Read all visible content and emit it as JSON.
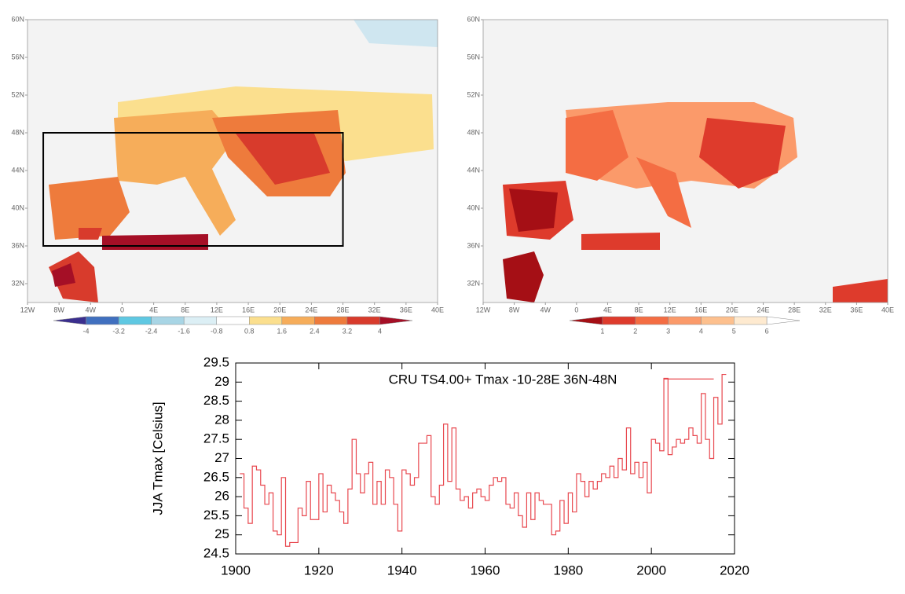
{
  "maps": [
    {
      "xlim": [
        -12,
        40
      ],
      "ylim": [
        30,
        60
      ],
      "xticks": [
        {
          "value": -12,
          "label": "12W"
        },
        {
          "value": -8,
          "label": "8W"
        },
        {
          "value": -4,
          "label": "4W"
        },
        0,
        {
          "value": 4,
          "label": "4E"
        },
        {
          "value": 8,
          "label": "8E"
        },
        {
          "value": 12,
          "label": "12E"
        },
        {
          "value": 16,
          "label": "16E"
        },
        {
          "value": 20,
          "label": "20E"
        },
        {
          "value": 24,
          "label": "24E"
        },
        {
          "value": 28,
          "label": "28E"
        },
        {
          "value": 32,
          "label": "32E"
        },
        {
          "value": 36,
          "label": "36E"
        },
        {
          "value": 40,
          "label": "40E"
        }
      ],
      "yticks": [
        {
          "value": 32,
          "label": "32N"
        },
        {
          "value": 36,
          "label": "36N"
        },
        {
          "value": 40,
          "label": "40N"
        },
        {
          "value": 44,
          "label": "44N"
        },
        {
          "value": 48,
          "label": "48N"
        },
        {
          "value": 52,
          "label": "52N"
        },
        {
          "value": 56,
          "label": "56N"
        },
        {
          "value": 60,
          "label": "60N"
        }
      ],
      "box": {
        "lon": [
          -10,
          28
        ],
        "lat": [
          36,
          48
        ]
      },
      "colorbar": {
        "colors": [
          "#3b2f8e",
          "#4070bf",
          "#5fc8e2",
          "#a8d5e5",
          "#dceff5",
          "#ffffff",
          "#fbdf8e",
          "#f6ad5a",
          "#ee7b3c",
          "#d83b2c",
          "#a50f26"
        ],
        "labels": [
          -4,
          -3.2,
          -2.4,
          -1.6,
          -0.8,
          0.8,
          1.6,
          2.4,
          3.2,
          4
        ]
      }
    },
    {
      "xlim": [
        -12,
        40
      ],
      "ylim": [
        30,
        60
      ],
      "xticks": [
        {
          "value": -12,
          "label": "12W"
        },
        {
          "value": -8,
          "label": "8W"
        },
        {
          "value": -4,
          "label": "4W"
        },
        0,
        {
          "value": 4,
          "label": "4E"
        },
        {
          "value": 8,
          "label": "8E"
        },
        {
          "value": 12,
          "label": "12E"
        },
        {
          "value": 16,
          "label": "16E"
        },
        {
          "value": 20,
          "label": "20E"
        },
        {
          "value": 24,
          "label": "24E"
        },
        {
          "value": 28,
          "label": "28E"
        },
        {
          "value": 32,
          "label": "32E"
        },
        {
          "value": 36,
          "label": "36E"
        },
        {
          "value": 40,
          "label": "40E"
        }
      ],
      "yticks": [
        {
          "value": 32,
          "label": "32N"
        },
        {
          "value": 36,
          "label": "36N"
        },
        {
          "value": 40,
          "label": "40N"
        },
        {
          "value": 44,
          "label": "44N"
        },
        {
          "value": 48,
          "label": "48N"
        },
        {
          "value": 52,
          "label": "52N"
        },
        {
          "value": 56,
          "label": "56N"
        },
        {
          "value": 60,
          "label": "60N"
        }
      ],
      "colorbar": {
        "colors": [
          "#a50f15",
          "#de3b2c",
          "#f46d43",
          "#fb9a6a",
          "#fdc08e",
          "#feead0",
          "#ffffff"
        ],
        "labels": [
          1,
          2,
          3,
          4,
          5,
          6
        ]
      }
    }
  ],
  "chart_data": {
    "type": "line",
    "step": true,
    "title": "CRU TS4.00+ Tmax -10-28E 36N-48N",
    "y_label": "JJA Tmax [Celsius]",
    "color": "#e8484f",
    "x": [
      1901,
      1902,
      1903,
      1904,
      1905,
      1906,
      1907,
      1908,
      1909,
      1910,
      1911,
      1912,
      1913,
      1914,
      1915,
      1916,
      1917,
      1918,
      1919,
      1920,
      1921,
      1922,
      1923,
      1924,
      1925,
      1926,
      1927,
      1928,
      1929,
      1930,
      1931,
      1932,
      1933,
      1934,
      1935,
      1936,
      1937,
      1938,
      1939,
      1940,
      1941,
      1942,
      1943,
      1944,
      1945,
      1946,
      1947,
      1948,
      1949,
      1950,
      1951,
      1952,
      1953,
      1954,
      1955,
      1956,
      1957,
      1958,
      1959,
      1960,
      1961,
      1962,
      1963,
      1964,
      1965,
      1966,
      1967,
      1968,
      1969,
      1970,
      1971,
      1972,
      1973,
      1974,
      1975,
      1976,
      1977,
      1978,
      1979,
      1980,
      1981,
      1982,
      1983,
      1984,
      1985,
      1986,
      1987,
      1988,
      1989,
      1990,
      1991,
      1992,
      1993,
      1994,
      1995,
      1996,
      1997,
      1998,
      1999,
      2000,
      2001,
      2002,
      2003,
      2004,
      2005,
      2006,
      2007,
      2008,
      2009,
      2010,
      2011,
      2012,
      2013,
      2014,
      2015,
      2016,
      2017
    ],
    "values": [
      26.6,
      25.7,
      25.3,
      26.8,
      26.7,
      26.3,
      25.8,
      26.1,
      25.1,
      25.0,
      26.5,
      24.7,
      24.8,
      24.8,
      25.7,
      25.5,
      26.4,
      25.4,
      25.4,
      26.6,
      25.6,
      26.3,
      26.1,
      25.9,
      25.6,
      25.3,
      26.2,
      27.5,
      26.6,
      26.1,
      26.6,
      26.9,
      25.8,
      26.4,
      25.8,
      26.7,
      26.5,
      25.8,
      25.1,
      26.7,
      26.6,
      26.3,
      26.5,
      27.4,
      27.4,
      27.6,
      26.0,
      25.8,
      26.3,
      27.9,
      26.4,
      27.8,
      26.2,
      25.9,
      26.0,
      25.7,
      26.1,
      26.2,
      26.0,
      25.9,
      26.3,
      26.5,
      26.4,
      26.5,
      25.8,
      25.7,
      26.1,
      25.5,
      25.2,
      26.1,
      25.4,
      26.1,
      25.9,
      25.8,
      25.8,
      25.0,
      25.1,
      25.9,
      25.3,
      26.1,
      25.6,
      26.6,
      26.4,
      26.0,
      26.4,
      26.2,
      26.4,
      26.6,
      26.5,
      26.8,
      26.5,
      27.0,
      26.7,
      27.8,
      26.6,
      26.9,
      26.5,
      26.9,
      26.1,
      27.5,
      27.4,
      27.2,
      29.1,
      27.1,
      27.3,
      27.5,
      27.4,
      27.5,
      27.8,
      27.6,
      27.4,
      28.7,
      27.5,
      27.0,
      28.6,
      27.9,
      29.2
    ],
    "reference_line": {
      "x": [
        2003,
        2015
      ],
      "y": 29.08
    },
    "xlim": [
      1900,
      2020
    ],
    "xticks": [
      1900,
      1920,
      1940,
      1960,
      1980,
      2000,
      2020
    ],
    "ylim": [
      24.5,
      29.5
    ],
    "yticks": [
      24.5,
      25,
      25.5,
      26,
      26.5,
      27,
      27.5,
      28,
      28.5,
      29,
      29.5
    ]
  }
}
